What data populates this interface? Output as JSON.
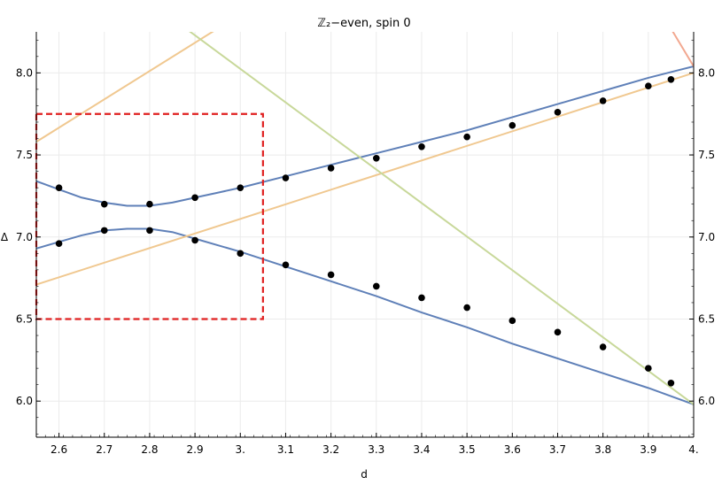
{
  "chart_data": {
    "type": "scatter",
    "title": "ℤ₂−even, spin 0",
    "xlabel": "d",
    "ylabel": "Δ",
    "xlim": [
      2.55,
      4.0
    ],
    "ylim": [
      5.78,
      8.25
    ],
    "x_ticks": [
      2.6,
      2.7,
      2.8,
      2.9,
      3.0,
      3.1,
      3.2,
      3.3,
      3.4,
      3.5,
      3.6,
      3.7,
      3.8,
      3.9,
      4.0
    ],
    "x_tick_labels": [
      "2.6",
      "2.7",
      "2.8",
      "2.9",
      "3.",
      "3.1",
      "3.2",
      "3.3",
      "3.4",
      "3.5",
      "3.6",
      "3.7",
      "3.8",
      "3.9",
      "4."
    ],
    "y_ticks": [
      6.0,
      6.5,
      7.0,
      7.5,
      8.0
    ],
    "y_tick_labels": [
      "6.0",
      "6.5",
      "7.0",
      "7.5",
      "8.0"
    ],
    "grid": true,
    "mirror_right_axis": true,
    "points": {
      "color": "#000000",
      "x": [
        2.6,
        2.7,
        2.8,
        2.9,
        3.0,
        3.1,
        3.2,
        3.3,
        3.4,
        3.5,
        3.6,
        3.7,
        3.8,
        3.9,
        3.95,
        2.6,
        2.7,
        2.8,
        2.9,
        3.0,
        3.1,
        3.2,
        3.3,
        3.4,
        3.5,
        3.6,
        3.7,
        3.8,
        3.9,
        3.95
      ],
      "y": [
        7.3,
        7.2,
        7.2,
        7.24,
        7.3,
        7.36,
        7.42,
        7.48,
        7.55,
        7.61,
        7.68,
        7.76,
        7.83,
        7.92,
        7.96,
        6.96,
        7.04,
        7.04,
        6.98,
        6.9,
        6.83,
        6.77,
        6.7,
        6.63,
        6.57,
        6.49,
        6.42,
        6.33,
        6.2,
        6.11
      ]
    },
    "curves": [
      {
        "color": "#5f80b8",
        "x": [
          2.55,
          2.6,
          2.65,
          2.7,
          2.75,
          2.8,
          2.85,
          2.9,
          2.95,
          3.0,
          3.1,
          3.2,
          3.3,
          3.4,
          3.5,
          3.6,
          3.7,
          3.8,
          3.9,
          4.0
        ],
        "y": [
          7.34,
          7.29,
          7.24,
          7.21,
          7.19,
          7.19,
          7.21,
          7.24,
          7.27,
          7.3,
          7.37,
          7.44,
          7.51,
          7.58,
          7.65,
          7.73,
          7.81,
          7.89,
          7.97,
          8.04
        ]
      },
      {
        "color": "#5f80b8",
        "x": [
          2.55,
          2.6,
          2.65,
          2.7,
          2.75,
          2.8,
          2.85,
          2.9,
          2.95,
          3.0,
          3.1,
          3.2,
          3.3,
          3.4,
          3.5,
          3.6,
          3.7,
          3.8,
          3.9,
          4.0
        ],
        "y": [
          6.93,
          6.97,
          7.01,
          7.04,
          7.05,
          7.05,
          7.03,
          6.99,
          6.95,
          6.91,
          6.82,
          6.73,
          6.64,
          6.54,
          6.45,
          6.35,
          6.26,
          6.17,
          6.08,
          5.98
        ]
      },
      {
        "color": "#f0c890",
        "x": [
          2.55,
          4.0
        ],
        "y": [
          6.71,
          8.0
        ]
      },
      {
        "color": "#f0c890",
        "x": [
          2.55,
          2.95
        ],
        "y": [
          7.58,
          8.27
        ]
      },
      {
        "color": "#c8d89a",
        "x": [
          2.88,
          4.0
        ],
        "y": [
          8.27,
          5.98
        ]
      },
      {
        "color": "#f2a890",
        "x": [
          3.95,
          4.0
        ],
        "y": [
          8.27,
          8.04
        ]
      }
    ],
    "highlight_box": {
      "color": "#e02020",
      "x": [
        2.55,
        3.05
      ],
      "y": [
        6.5,
        7.75
      ]
    }
  }
}
